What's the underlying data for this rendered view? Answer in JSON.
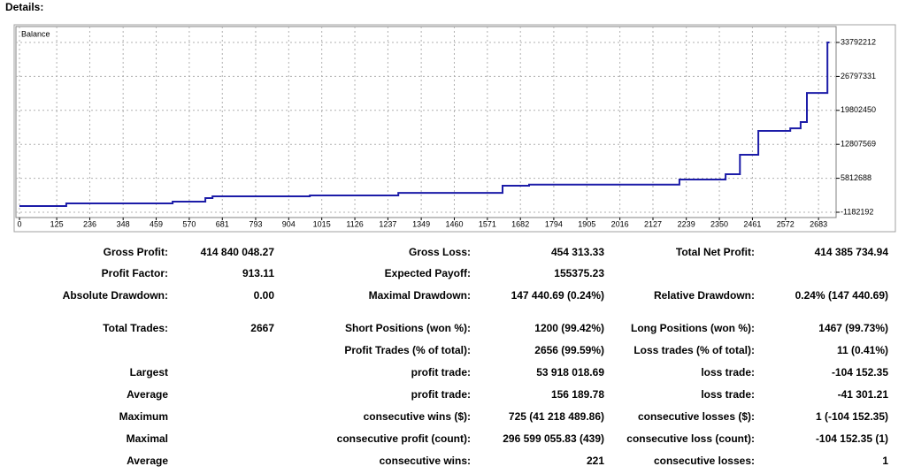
{
  "header": {
    "title": "Details:"
  },
  "chart_data": {
    "type": "line",
    "x": [
      0,
      157,
      157,
      514,
      514,
      624,
      624,
      648,
      648,
      975,
      975,
      1272,
      1272,
      1622,
      1622,
      1711,
      1711,
      2216,
      2216,
      2371,
      2371,
      2419,
      2419,
      2481,
      2481,
      2588,
      2588,
      2623,
      2623,
      2644,
      2644,
      2713,
      2713,
      2720
    ],
    "series": [
      {
        "name": "Balance",
        "color": "#1c1ca8",
        "values": [
          93000,
          93000,
          640000,
          640000,
          1000000,
          1000000,
          1730000,
          1730000,
          2100000,
          2100000,
          2280000,
          2280000,
          2800000,
          2800000,
          4280000,
          4280000,
          4500000,
          4500000,
          5560000,
          5560000,
          6650000,
          6650000,
          10660000,
          10660000,
          15580000,
          15580000,
          16100000,
          16100000,
          17400000,
          17400000,
          23400000,
          23400000,
          33792212,
          33792212
        ]
      }
    ],
    "xlim": [
      -12,
      2742
    ],
    "xticks": [
      0,
      125,
      236,
      348,
      459,
      570,
      681,
      793,
      904,
      1015,
      1126,
      1237,
      1349,
      1460,
      1571,
      1682,
      1794,
      1905,
      2016,
      2127,
      2239,
      2350,
      2461,
      2572,
      2683
    ],
    "ylim": [
      -2275000,
      37071000
    ],
    "yticks": [
      -1182192,
      5812688,
      12807569,
      19802450,
      26797331,
      33792212
    ],
    "grid": true
  },
  "table": {
    "rows": [
      [
        "Gross Profit:",
        "414 840 048.27",
        "Gross Loss:",
        "454 313.33",
        "Total Net Profit:",
        "414 385 734.94"
      ],
      [
        "Profit Factor:",
        "913.11",
        "Expected Payoff:",
        "155375.23",
        null,
        null
      ],
      [
        "Absolute Drawdown:",
        "0.00",
        "Maximal Drawdown:",
        "147 440.69 (0.24%)",
        "Relative Drawdown:",
        "0.24% (147 440.69)"
      ],
      [
        "Total Trades:",
        "2667",
        "Short Positions (won %):",
        "1200 (99.42%)",
        "Long Positions (won %):",
        "1467 (99.73%)"
      ],
      [
        null,
        null,
        "Profit Trades (% of total):",
        "2656 (99.59%)",
        "Loss trades (% of total):",
        "11 (0.41%)"
      ],
      [
        "Largest",
        null,
        "profit trade:",
        "53 918 018.69",
        "loss trade:",
        "-104 152.35"
      ],
      [
        "Average",
        null,
        "profit trade:",
        "156 189.78",
        "loss trade:",
        "-41 301.21"
      ],
      [
        "Maximum",
        null,
        "consecutive wins ($):",
        "725 (41 218 489.86)",
        "consecutive losses ($):",
        "1 (-104 152.35)"
      ],
      [
        "Maximal",
        null,
        "consecutive profit (count):",
        "296 599 055.83 (439)",
        "consecutive loss (count):",
        "-104 152.35 (1)"
      ],
      [
        "Average",
        null,
        "consecutive wins:",
        "221",
        "consecutive losses:",
        "1"
      ]
    ]
  }
}
